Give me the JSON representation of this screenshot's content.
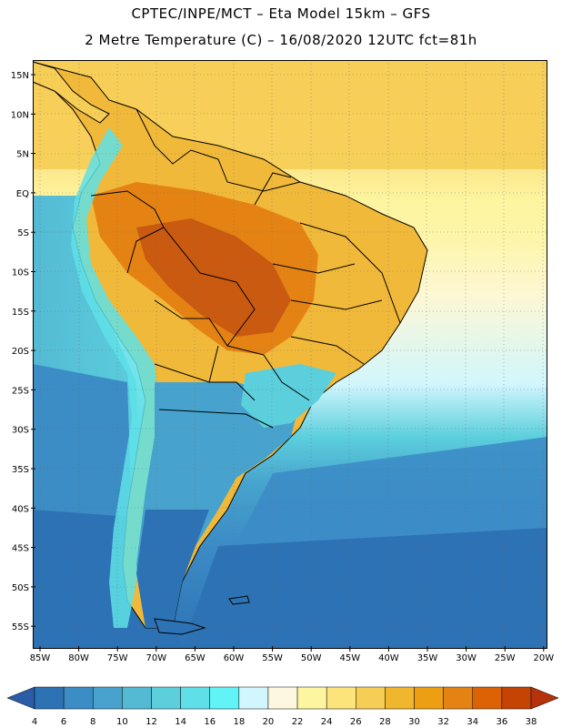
{
  "title": {
    "line1": "CPTEC/INPE/MCT –  Eta Model 15km – GFS",
    "line2": "2 Metre Temperature (C) – 16/08/2020 12UTC fct=81h"
  },
  "map": {
    "lat_labels": [
      "15N",
      "10N",
      "5N",
      "EQ",
      "5S",
      "10S",
      "15S",
      "20S",
      "25S",
      "30S",
      "35S",
      "40S",
      "45S",
      "50S",
      "55S"
    ],
    "lon_labels": [
      "85W",
      "80W",
      "75W",
      "70W",
      "65W",
      "60W",
      "55W",
      "50W",
      "45W",
      "40W",
      "35W",
      "30W",
      "25W",
      "20W"
    ]
  },
  "colorbar": {
    "ticks": [
      "4",
      "6",
      "8",
      "10",
      "12",
      "14",
      "16",
      "18",
      "20",
      "22",
      "24",
      "26",
      "28",
      "30",
      "32",
      "34",
      "36",
      "38"
    ],
    "colors": [
      "#2a5ca8",
      "#2d72b5",
      "#3c8cc6",
      "#47a3cd",
      "#54bad4",
      "#5ccfdd",
      "#5fe0e8",
      "#60f4f6",
      "#d2f6fd",
      "#fdf7e0",
      "#fdf5a0",
      "#fce37a",
      "#f6cd55",
      "#efb62e",
      "#ec9f12",
      "#e48313",
      "#dc6206",
      "#c54303",
      "#b5320a"
    ]
  }
}
